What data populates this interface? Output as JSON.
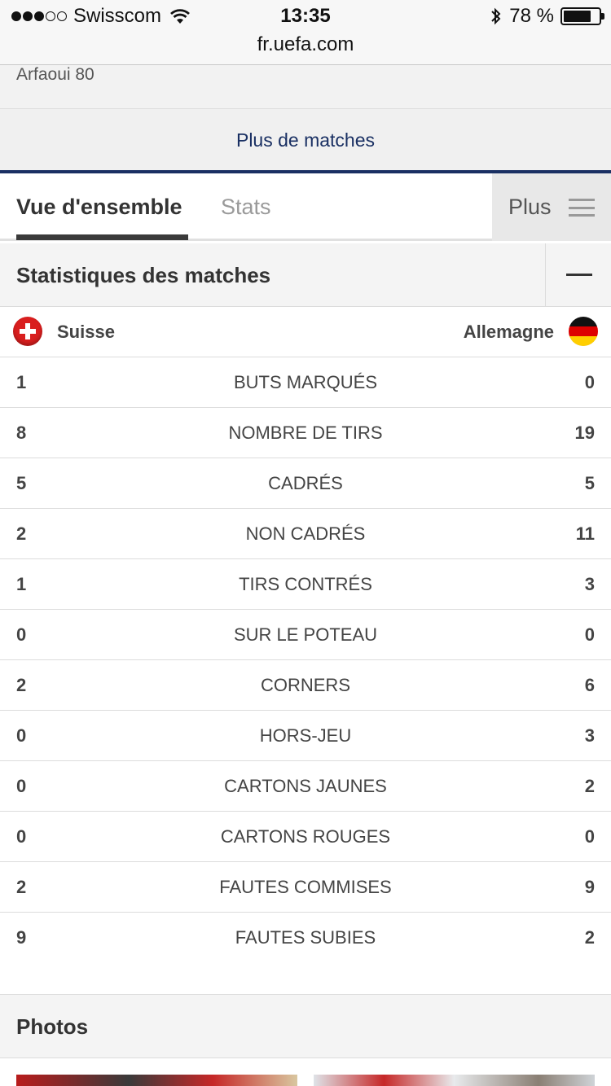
{
  "status_bar": {
    "carrier": "Swisscom",
    "time": "13:35",
    "battery": "78 %",
    "battery_level": 0.78,
    "signal_bars_filled": 3,
    "signal_bars_total": 5
  },
  "url_bar": {
    "url": "fr.uefa.com"
  },
  "scorer_strip": {
    "text": "Arfaoui 80"
  },
  "more_matches": {
    "label": "Plus de matches"
  },
  "tabs": {
    "overview": "Vue d'ensemble",
    "stats": "Stats",
    "more": "Plus"
  },
  "section": {
    "title": "Statistiques des matches"
  },
  "teams": {
    "home": "Suisse",
    "away": "Allemagne"
  },
  "stats": [
    {
      "home": "1",
      "label": "BUTS MARQUÉS",
      "away": "0"
    },
    {
      "home": "8",
      "label": "NOMBRE DE TIRS",
      "away": "19"
    },
    {
      "home": "5",
      "label": "CADRÉS",
      "away": "5"
    },
    {
      "home": "2",
      "label": "NON CADRÉS",
      "away": "11"
    },
    {
      "home": "1",
      "label": "TIRS CONTRÉS",
      "away": "3"
    },
    {
      "home": "0",
      "label": "SUR LE POTEAU",
      "away": "0"
    },
    {
      "home": "2",
      "label": "CORNERS",
      "away": "6"
    },
    {
      "home": "0",
      "label": "HORS-JEU",
      "away": "3"
    },
    {
      "home": "0",
      "label": "CARTONS JAUNES",
      "away": "2"
    },
    {
      "home": "0",
      "label": "CARTONS ROUGES",
      "away": "0"
    },
    {
      "home": "2",
      "label": "FAUTES COMMISES",
      "away": "9"
    },
    {
      "home": "9",
      "label": "FAUTES SUBIES",
      "away": "2"
    }
  ],
  "photos": {
    "title": "Photos"
  },
  "colors": {
    "navy": "#1a3063",
    "header_bg": "#f4f4f4",
    "text": "#444444"
  }
}
